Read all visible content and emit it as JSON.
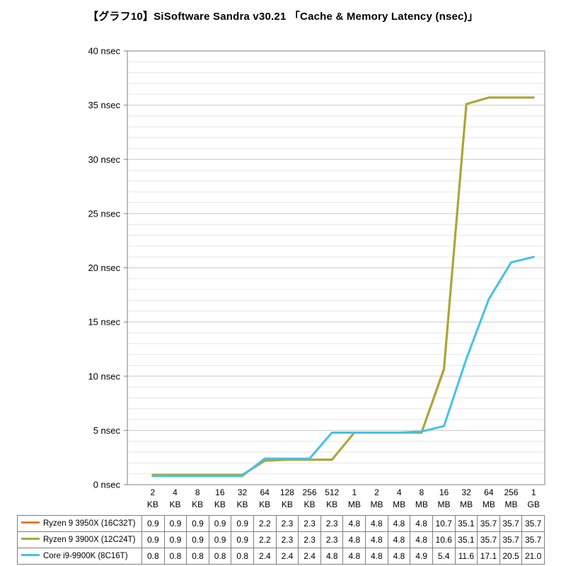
{
  "title": "【グラフ10】SiSoftware Sandra v30.21 「Cache & Memory Latency (nsec)」",
  "chart_data": {
    "type": "line",
    "title": "【グラフ10】SiSoftware Sandra v30.21 「Cache & Memory Latency (nsec)」",
    "xlabel": "",
    "ylabel": "nsec",
    "ylim": [
      0,
      40
    ],
    "y_major_step": 5,
    "y_minor_step": 1,
    "y_tick_suffix": " nsec",
    "y_tick_labels": [
      "0 nsec",
      "5 nsec",
      "10 nsec",
      "15 nsec",
      "20 nsec",
      "25 nsec",
      "30 nsec",
      "35 nsec",
      "40 nsec"
    ],
    "grid": "horizontal minor+major, no vertical",
    "legend_position": "table-left",
    "categories": [
      [
        "2",
        "KB"
      ],
      [
        "4",
        "KB"
      ],
      [
        "8",
        "KB"
      ],
      [
        "16",
        "KB"
      ],
      [
        "32",
        "KB"
      ],
      [
        "64",
        "KB"
      ],
      [
        "128",
        "KB"
      ],
      [
        "256",
        "KB"
      ],
      [
        "512",
        "KB"
      ],
      [
        "1",
        "MB"
      ],
      [
        "2",
        "MB"
      ],
      [
        "4",
        "MB"
      ],
      [
        "8",
        "MB"
      ],
      [
        "16",
        "MB"
      ],
      [
        "32",
        "MB"
      ],
      [
        "64",
        "MB"
      ],
      [
        "256",
        "MB"
      ],
      [
        "1",
        "GB"
      ]
    ],
    "series": [
      {
        "name": "Ryzen 9 3950X (16C32T)",
        "color": "#E87D2D",
        "values": [
          0.9,
          0.9,
          0.9,
          0.9,
          0.9,
          2.2,
          2.3,
          2.3,
          2.3,
          4.8,
          4.8,
          4.8,
          4.8,
          10.7,
          35.1,
          35.7,
          35.7,
          35.7
        ]
      },
      {
        "name": "Ryzen 9 3900X (12C24T)",
        "color": "#A9A838",
        "values": [
          0.9,
          0.9,
          0.9,
          0.9,
          0.9,
          2.2,
          2.3,
          2.3,
          2.3,
          4.8,
          4.8,
          4.8,
          4.8,
          10.6,
          35.1,
          35.7,
          35.7,
          35.7
        ]
      },
      {
        "name": "Core i9-9900K (8C16T)",
        "color": "#45C1E8",
        "values": [
          0.8,
          0.8,
          0.8,
          0.8,
          0.8,
          2.4,
          2.4,
          2.4,
          4.8,
          4.8,
          4.8,
          4.8,
          4.9,
          5.4,
          11.6,
          17.1,
          20.5,
          21.0
        ]
      }
    ],
    "colors": {
      "grid_minor": "#E6E6E6",
      "grid_major": "#C9C9C9",
      "axis": "#7F7F7F",
      "background": "#FFFFFF"
    }
  }
}
